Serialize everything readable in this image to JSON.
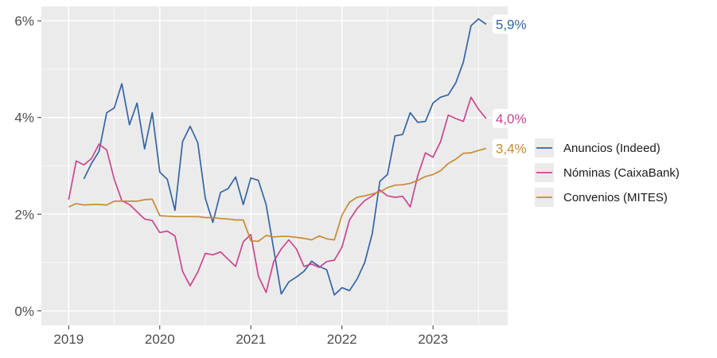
{
  "chart_data": {
    "type": "line",
    "title": "",
    "xlabel": "",
    "ylabel": "",
    "xlim": [
      2018.7,
      2023.82
    ],
    "ylim": [
      -0.3,
      6.3
    ],
    "grid": true,
    "legend_position": "right",
    "x_ticks": [
      {
        "value": 2019,
        "label": "2019"
      },
      {
        "value": 2020,
        "label": "2020"
      },
      {
        "value": 2021,
        "label": "2021"
      },
      {
        "value": 2022,
        "label": "2022"
      },
      {
        "value": 2023,
        "label": "2023"
      }
    ],
    "y_ticks": [
      {
        "value": 0,
        "label": "0%"
      },
      {
        "value": 2,
        "label": "2%"
      },
      {
        "value": 4,
        "label": "4%"
      },
      {
        "value": 6,
        "label": "6%"
      }
    ],
    "series": [
      {
        "name": "Anuncios (Indeed)",
        "color": "#3465a4",
        "end_label": "5,9%",
        "x": [
          2019.167,
          2019.25,
          2019.333,
          2019.417,
          2019.5,
          2019.583,
          2019.667,
          2019.75,
          2019.833,
          2019.917,
          2020.0,
          2020.083,
          2020.167,
          2020.25,
          2020.333,
          2020.417,
          2020.5,
          2020.583,
          2020.667,
          2020.75,
          2020.833,
          2020.917,
          2021.0,
          2021.083,
          2021.167,
          2021.25,
          2021.333,
          2021.417,
          2021.5,
          2021.583,
          2021.667,
          2021.75,
          2021.833,
          2021.917,
          2022.0,
          2022.083,
          2022.167,
          2022.25,
          2022.333,
          2022.417,
          2022.5,
          2022.583,
          2022.667,
          2022.75,
          2022.833,
          2022.917,
          2023.0,
          2023.083,
          2023.167,
          2023.25,
          2023.333,
          2023.417,
          2023.5,
          2023.583
        ],
        "y": [
          2.73,
          3.05,
          3.3,
          4.1,
          4.2,
          4.7,
          3.85,
          4.3,
          3.35,
          4.1,
          2.87,
          2.72,
          2.08,
          3.5,
          3.82,
          3.48,
          2.33,
          1.83,
          2.45,
          2.53,
          2.77,
          2.2,
          2.75,
          2.7,
          2.2,
          1.28,
          0.35,
          0.6,
          0.7,
          0.82,
          1.03,
          0.92,
          0.85,
          0.33,
          0.48,
          0.42,
          0.66,
          1.0,
          1.6,
          2.68,
          2.82,
          3.62,
          3.65,
          4.1,
          3.9,
          3.92,
          4.3,
          4.42,
          4.47,
          4.72,
          5.15,
          5.9,
          6.04,
          5.93
        ]
      },
      {
        "name": "Nóminas (CaixaBank)",
        "color": "#c9478f",
        "end_label": "4,0%",
        "x": [
          2019.0,
          2019.083,
          2019.167,
          2019.25,
          2019.333,
          2019.417,
          2019.5,
          2019.583,
          2019.667,
          2019.75,
          2019.833,
          2019.917,
          2020.0,
          2020.083,
          2020.167,
          2020.25,
          2020.333,
          2020.417,
          2020.5,
          2020.583,
          2020.667,
          2020.75,
          2020.833,
          2020.917,
          2021.0,
          2021.083,
          2021.167,
          2021.25,
          2021.333,
          2021.417,
          2021.5,
          2021.583,
          2021.667,
          2021.75,
          2021.833,
          2021.917,
          2022.0,
          2022.083,
          2022.167,
          2022.25,
          2022.333,
          2022.417,
          2022.5,
          2022.583,
          2022.667,
          2022.75,
          2022.833,
          2022.917,
          2023.0,
          2023.083,
          2023.167,
          2023.25,
          2023.333,
          2023.417,
          2023.5,
          2023.583
        ],
        "y": [
          2.3,
          3.1,
          3.02,
          3.15,
          3.45,
          3.33,
          2.72,
          2.28,
          2.2,
          2.05,
          1.9,
          1.87,
          1.62,
          1.65,
          1.55,
          0.82,
          0.52,
          0.8,
          1.19,
          1.16,
          1.22,
          1.07,
          0.92,
          1.43,
          1.58,
          0.72,
          0.38,
          1.02,
          1.28,
          1.47,
          1.28,
          0.92,
          0.97,
          0.9,
          1.02,
          1.05,
          1.32,
          1.88,
          2.12,
          2.28,
          2.38,
          2.5,
          2.38,
          2.35,
          2.37,
          2.15,
          2.8,
          3.27,
          3.18,
          3.5,
          4.05,
          3.98,
          3.92,
          4.42,
          4.17,
          3.98
        ]
      },
      {
        "name": "Convenios (MITES)",
        "color": "#c88a35",
        "end_label": "3,4%",
        "x": [
          2019.0,
          2019.083,
          2019.167,
          2019.25,
          2019.333,
          2019.417,
          2019.5,
          2019.583,
          2019.667,
          2019.75,
          2019.833,
          2019.917,
          2020.0,
          2020.083,
          2020.167,
          2020.25,
          2020.333,
          2020.417,
          2020.5,
          2020.583,
          2020.667,
          2020.75,
          2020.833,
          2020.917,
          2021.0,
          2021.083,
          2021.167,
          2021.25,
          2021.333,
          2021.417,
          2021.5,
          2021.583,
          2021.667,
          2021.75,
          2021.833,
          2021.917,
          2022.0,
          2022.083,
          2022.167,
          2022.25,
          2022.333,
          2022.417,
          2022.5,
          2022.583,
          2022.667,
          2022.75,
          2022.833,
          2022.917,
          2023.0,
          2023.083,
          2023.167,
          2023.25,
          2023.333,
          2023.417,
          2023.5,
          2023.583
        ],
        "y": [
          2.15,
          2.22,
          2.19,
          2.2,
          2.2,
          2.19,
          2.27,
          2.27,
          2.27,
          2.27,
          2.3,
          2.31,
          1.97,
          1.96,
          1.95,
          1.95,
          1.95,
          1.95,
          1.93,
          1.93,
          1.91,
          1.9,
          1.88,
          1.88,
          1.45,
          1.44,
          1.56,
          1.53,
          1.54,
          1.54,
          1.52,
          1.5,
          1.47,
          1.55,
          1.49,
          1.47,
          1.98,
          2.25,
          2.35,
          2.38,
          2.42,
          2.46,
          2.55,
          2.6,
          2.61,
          2.64,
          2.7,
          2.78,
          2.82,
          2.9,
          3.05,
          3.14,
          3.26,
          3.27,
          3.32,
          3.36
        ]
      }
    ]
  }
}
